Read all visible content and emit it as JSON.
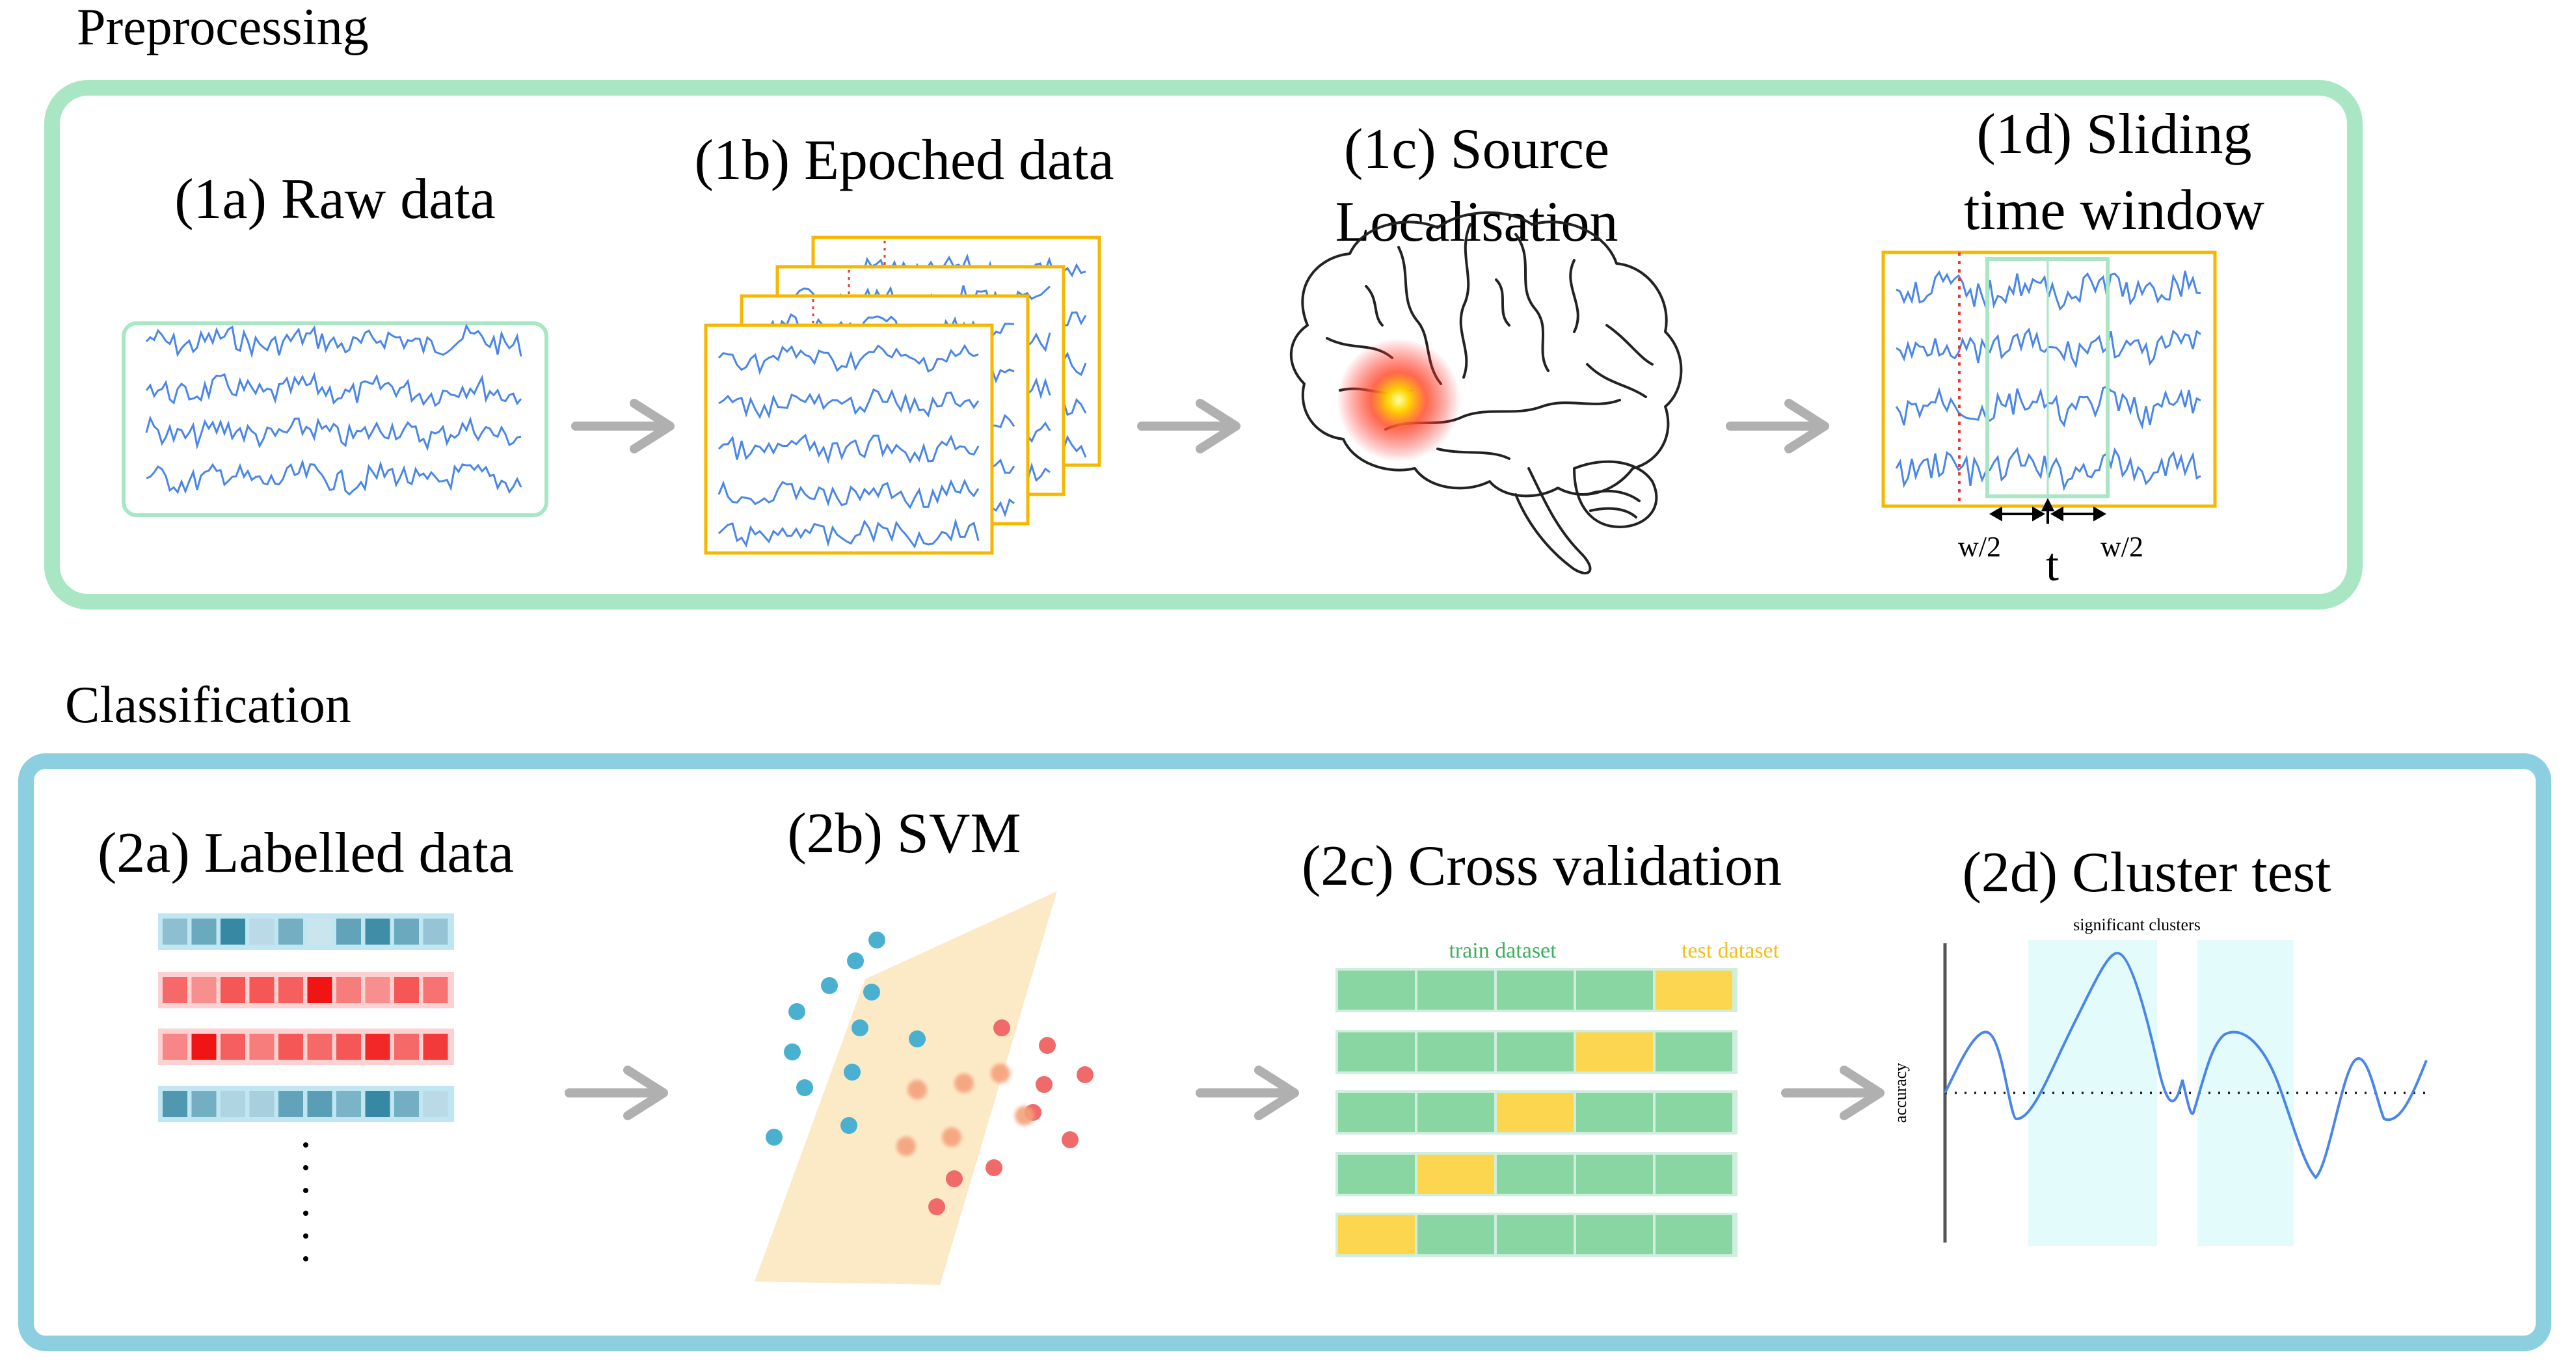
{
  "sections": {
    "preprocessing": {
      "title": "Preprocessing",
      "border_color": "#a9e6c4"
    },
    "classification": {
      "title": "Classification",
      "border_color": "#8ccfe0"
    }
  },
  "steps": {
    "raw": {
      "label": "(1a) Raw data"
    },
    "epoched": {
      "label": "(1b) Epoched data"
    },
    "source": {
      "label_line1": "(1c) Source",
      "label_line2": "Localisation"
    },
    "sliding": {
      "label_line1": "(1d) Sliding",
      "label_line2": "time window",
      "half_window_left": "w/2",
      "time_point": "t",
      "half_window_right": "w/2"
    },
    "labelled": {
      "label": "(2a) Labelled data"
    },
    "svm": {
      "label": "(2b) SVM"
    },
    "cv": {
      "label": "(2c) Cross validation",
      "train_label": "train dataset",
      "test_label": "test dataset",
      "folds": 5,
      "test_fold_positions": [
        4,
        3,
        2,
        1,
        0
      ]
    },
    "cluster": {
      "label": "(2d) Cluster test",
      "clusters_label": "significant clusters",
      "y_axis_label": "accuracy"
    }
  },
  "colors": {
    "eeg_trace": "#4a86e8",
    "epoch_border": "#f5b800",
    "sliding_window": "#a9e6c4",
    "marker_dotted": "#e53935",
    "arrow": "#b0b0b0",
    "hyperplane": "#fbe3b4",
    "class_blue": "#4ab0cf",
    "class_red": "#f06a6a",
    "class_orange": "#f5a07a",
    "train": "#8ad6a2",
    "test": "#fbd64e",
    "train_text": "#3fae5e",
    "test_text": "#f0c020",
    "cluster_band": "#e3fbfa",
    "accuracy_curve": "#4a86e8"
  },
  "labelled_rows": [
    {
      "class": "blue",
      "intensities": [
        0.45,
        0.65,
        0.95,
        0.2,
        0.6,
        0.1,
        0.7,
        0.9,
        0.65,
        0.4
      ]
    },
    {
      "class": "red",
      "intensities": [
        0.5,
        0.3,
        0.6,
        0.6,
        0.55,
        0.95,
        0.4,
        0.3,
        0.6,
        0.45
      ]
    },
    {
      "class": "red",
      "intensities": [
        0.35,
        0.95,
        0.55,
        0.4,
        0.6,
        0.5,
        0.6,
        0.85,
        0.5,
        0.75
      ]
    },
    {
      "class": "blue",
      "intensities": [
        0.8,
        0.6,
        0.25,
        0.3,
        0.7,
        0.75,
        0.55,
        0.95,
        0.6,
        0.2
      ]
    }
  ],
  "icons": [
    "brain-icon",
    "arrow-right-icon"
  ]
}
